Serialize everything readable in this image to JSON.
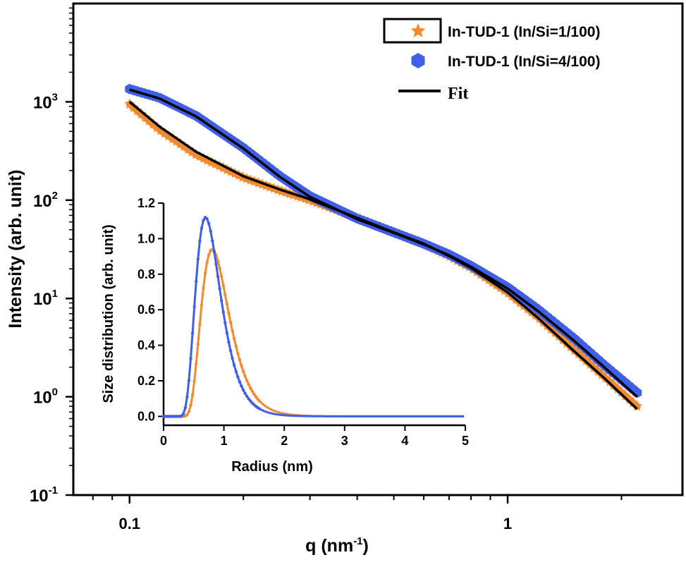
{
  "chart_data": [
    {
      "type": "line",
      "xlabel": "q (nm",
      "xlabel_sup": "-1",
      "xlabel_tail": ")",
      "ylabel": "Intensity (arb. unit)",
      "xscale": "log",
      "yscale": "log",
      "xlim": [
        0.071,
        2.9
      ],
      "ylim": [
        0.1,
        10000
      ],
      "x_ticks": [
        {
          "value": 0.1,
          "label": "0.1"
        },
        {
          "value": 1,
          "label": "1"
        }
      ],
      "y_ticks": [
        {
          "value": 0.1,
          "base": "10",
          "exp": "-1"
        },
        {
          "value": 1,
          "base": "10",
          "exp": "0"
        },
        {
          "value": 10,
          "base": "10",
          "exp": "1"
        },
        {
          "value": 100,
          "base": "10",
          "exp": "2"
        },
        {
          "value": 1000,
          "base": "10",
          "exp": "3"
        }
      ],
      "legend_position": "top-right",
      "series": [
        {
          "name": "In-TUD-1 (In/Si=1/100)",
          "color": "#f28a2e",
          "marker": "star",
          "x": [
            0.1,
            0.12,
            0.15,
            0.2,
            0.25,
            0.3,
            0.4,
            0.5,
            0.6,
            0.7,
            0.8,
            1.0,
            1.2,
            1.5,
            1.8,
            2.2
          ],
          "y": [
            950,
            520,
            290,
            170,
            125,
            100,
            66,
            47,
            36,
            27,
            20.5,
            11.5,
            6.5,
            3.0,
            1.6,
            0.8
          ]
        },
        {
          "name": "In-TUD-1 (In/Si=4/100)",
          "color": "#3f5fe8",
          "marker": "hexagon",
          "x": [
            0.1,
            0.12,
            0.15,
            0.2,
            0.25,
            0.3,
            0.4,
            0.5,
            0.6,
            0.7,
            0.8,
            1.0,
            1.2,
            1.5,
            1.8,
            2.2
          ],
          "y": [
            1350,
            1100,
            720,
            340,
            175,
            110,
            65,
            47,
            36,
            28,
            21.5,
            13.0,
            7.8,
            3.9,
            2.1,
            1.1
          ]
        },
        {
          "name": "Fit",
          "color": "#000000",
          "marker": "line",
          "fits": [
            {
              "x": [
                0.1,
                0.12,
                0.15,
                0.2,
                0.25,
                0.3,
                0.4,
                0.5,
                0.6,
                0.7,
                0.8,
                1.0,
                1.2,
                1.5,
                1.8,
                2.2
              ],
              "y": [
                1000,
                560,
                310,
                175,
                128,
                102,
                66,
                47,
                36,
                27,
                20.5,
                11.5,
                6.4,
                2.9,
                1.55,
                0.75
              ]
            },
            {
              "x": [
                0.1,
                0.12,
                0.15,
                0.2,
                0.25,
                0.3,
                0.4,
                0.5,
                0.6,
                0.7,
                0.8,
                1.0,
                1.2,
                1.5,
                1.8,
                2.2
              ],
              "y": [
                1330,
                1080,
                710,
                335,
                172,
                108,
                64,
                46.5,
                35.5,
                27.5,
                21.0,
                12.6,
                7.5,
                3.7,
                2.0,
                1.0
              ]
            }
          ]
        }
      ]
    },
    {
      "type": "line",
      "xlabel": "Radius (nm)",
      "ylabel": "Size distribution (arb. unit)",
      "xlim": [
        0,
        5
      ],
      "ylim": [
        -0.05,
        1.2
      ],
      "x_ticks": [
        "0",
        "1",
        "2",
        "3",
        "4",
        "5"
      ],
      "y_ticks": [
        "0.0",
        "0.2",
        "0.4",
        "0.6",
        "0.8",
        "1.0",
        "1.2"
      ],
      "series": [
        {
          "name": "In-TUD-1 (In/Si=1/100)",
          "color": "#f28a2e",
          "lognormal": {
            "r0": 0.9,
            "sigma": 0.38,
            "peak": 0.94,
            "onset": 0.2
          }
        },
        {
          "name": "In-TUD-1 (In/Si=4/100)",
          "color": "#3f5fe8",
          "lognormal": {
            "r0": 0.78,
            "sigma": 0.38,
            "peak": 1.12,
            "onset": 0.15
          }
        }
      ]
    }
  ]
}
